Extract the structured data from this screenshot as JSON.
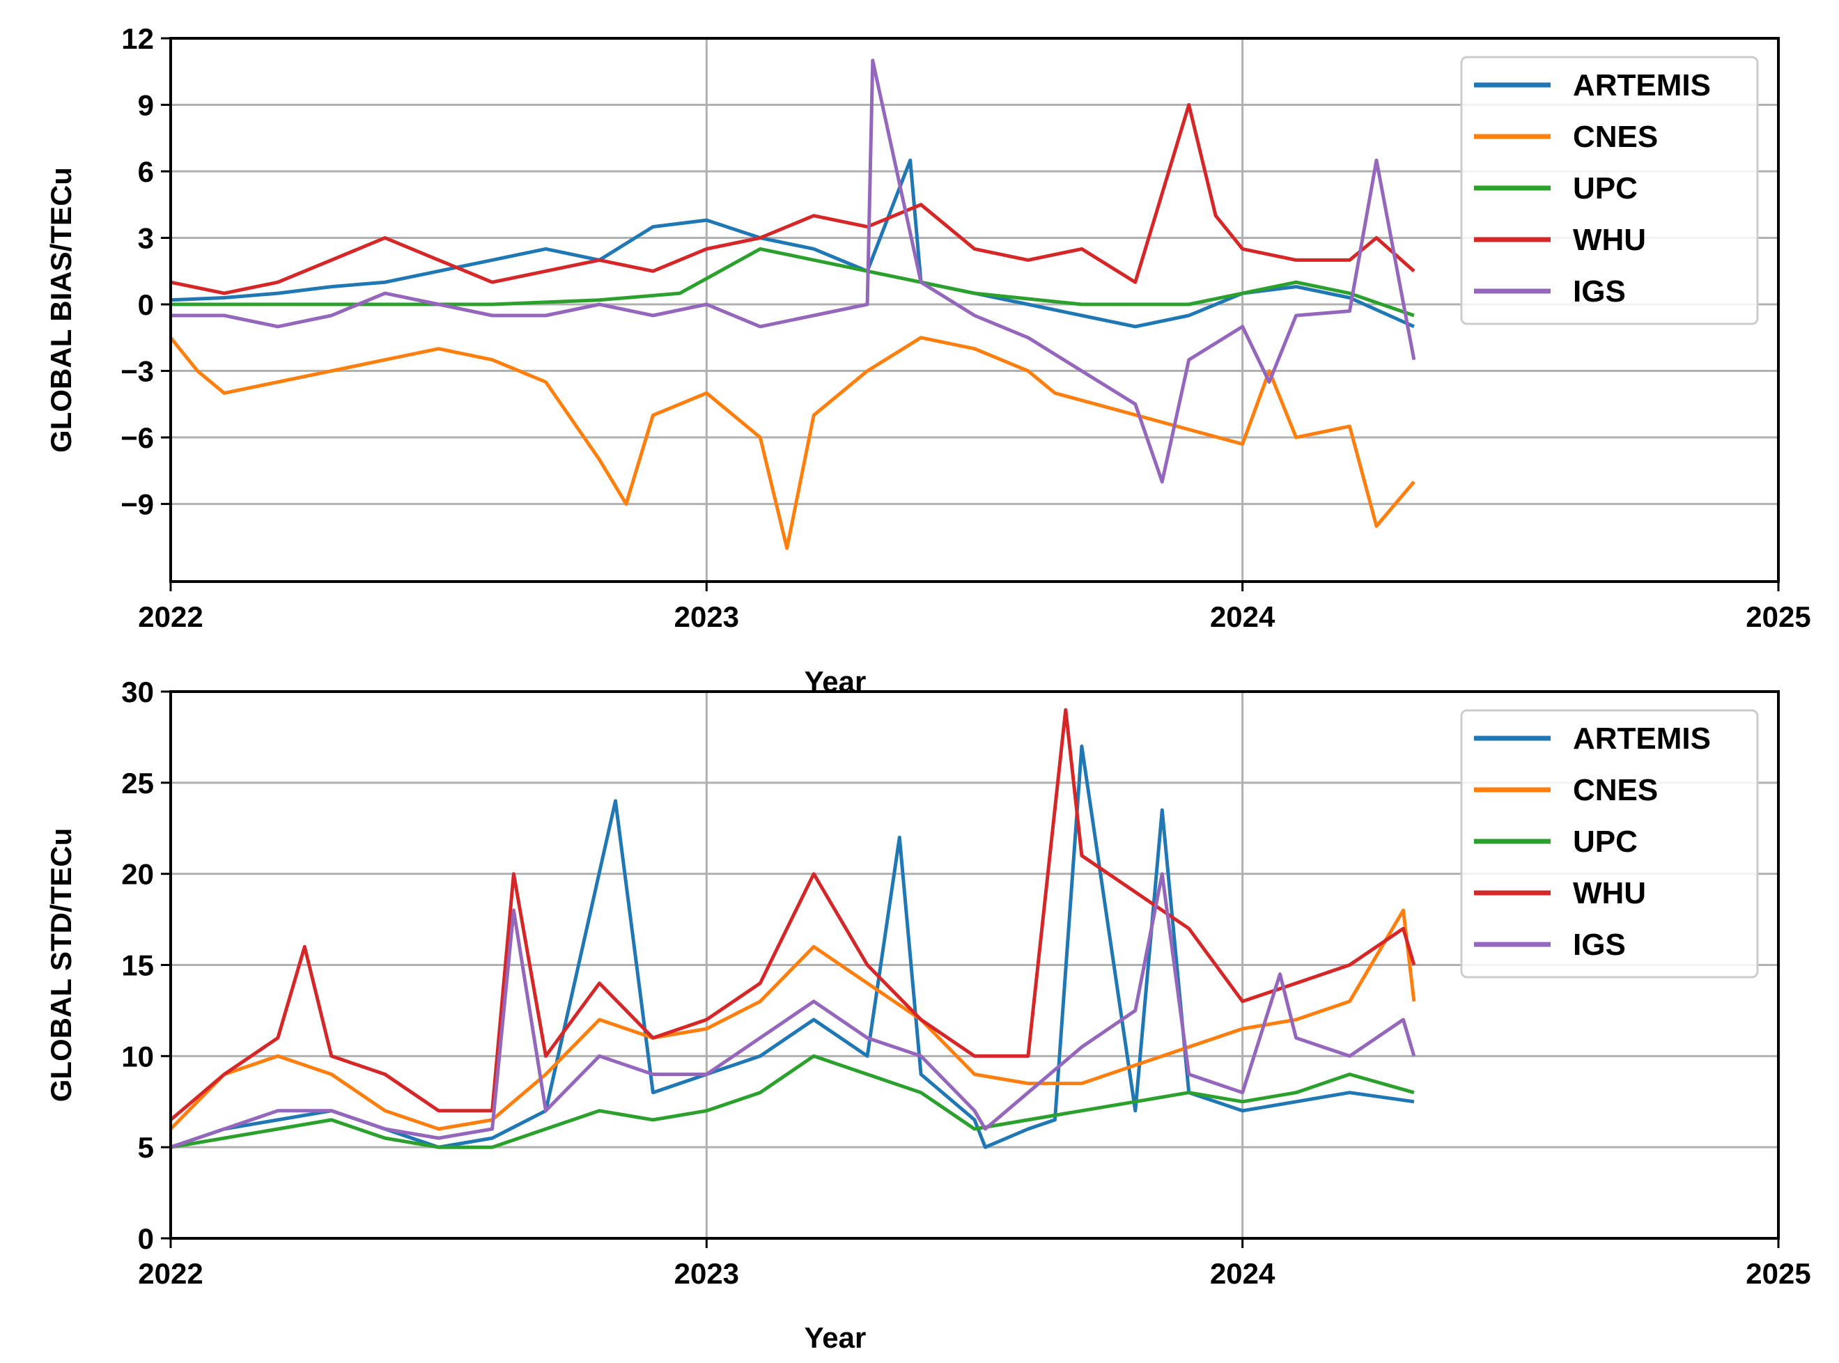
{
  "chart_data": [
    {
      "type": "line",
      "title": "",
      "xlabel": "Year",
      "ylabel": "GLOBAL BIAS/TECu",
      "xlim": [
        2022,
        2025
      ],
      "ylim": [
        -12.5,
        12
      ],
      "xticks": [
        "2022",
        "2023",
        "2024",
        "2025"
      ],
      "yticks": [
        "−9",
        "−6",
        "−3",
        "0",
        "3",
        "6",
        "9",
        "12"
      ],
      "legend_position": "upper-right",
      "grid": true,
      "series": [
        {
          "name": "ARTEMIS",
          "color": "#1f77b4",
          "x": [
            2022.0,
            2022.1,
            2022.2,
            2022.3,
            2022.4,
            2022.5,
            2022.6,
            2022.7,
            2022.8,
            2022.9,
            2023.0,
            2023.1,
            2023.2,
            2023.3,
            2023.38,
            2023.4,
            2023.5,
            2023.6,
            2023.7,
            2023.8,
            2023.9,
            2024.0,
            2024.1,
            2024.2,
            2024.32
          ],
          "y": [
            0.2,
            0.3,
            0.5,
            0.8,
            1.0,
            1.5,
            2.0,
            2.5,
            2.0,
            3.5,
            3.8,
            3.0,
            2.5,
            1.5,
            6.5,
            1.0,
            0.5,
            0.0,
            -0.5,
            -1.0,
            -0.5,
            0.5,
            0.8,
            0.3,
            -1.0
          ]
        },
        {
          "name": "CNES",
          "color": "#ff7f0e",
          "x": [
            2022.0,
            2022.05,
            2022.1,
            2022.2,
            2022.3,
            2022.4,
            2022.5,
            2022.6,
            2022.7,
            2022.8,
            2022.85,
            2022.9,
            2023.0,
            2023.1,
            2023.15,
            2023.2,
            2023.3,
            2023.4,
            2023.5,
            2023.6,
            2023.65,
            2024.0,
            2024.05,
            2024.1,
            2024.2,
            2024.25,
            2024.32
          ],
          "y": [
            -1.5,
            -3.0,
            -4.0,
            -3.5,
            -3.0,
            -2.5,
            -2.0,
            -2.5,
            -3.5,
            -7.0,
            -9.0,
            -5.0,
            -4.0,
            -6.0,
            -11.0,
            -5.0,
            -3.0,
            -1.5,
            -2.0,
            -3.0,
            -4.0,
            -6.3,
            -3.0,
            -6.0,
            -5.5,
            -10.0,
            -8.0
          ]
        },
        {
          "name": "UPC",
          "color": "#2ca02c",
          "x": [
            2022.0,
            2022.2,
            2022.4,
            2022.6,
            2022.8,
            2022.95,
            2023.1,
            2023.3,
            2023.5,
            2023.7,
            2023.9,
            2024.0,
            2024.1,
            2024.2,
            2024.32
          ],
          "y": [
            0.0,
            0.0,
            0.0,
            0.0,
            0.2,
            0.5,
            2.5,
            1.5,
            0.5,
            0.0,
            0.0,
            0.5,
            1.0,
            0.5,
            -0.5
          ]
        },
        {
          "name": "WHU",
          "color": "#d62728",
          "x": [
            2022.0,
            2022.1,
            2022.2,
            2022.3,
            2022.4,
            2022.5,
            2022.6,
            2022.7,
            2022.8,
            2022.9,
            2023.0,
            2023.1,
            2023.2,
            2023.3,
            2023.4,
            2023.5,
            2023.6,
            2023.7,
            2023.8,
            2023.85,
            2023.9,
            2023.95,
            2024.0,
            2024.1,
            2024.2,
            2024.25,
            2024.32
          ],
          "y": [
            1.0,
            0.5,
            1.0,
            2.0,
            3.0,
            2.0,
            1.0,
            1.5,
            2.0,
            1.5,
            2.5,
            3.0,
            4.0,
            3.5,
            4.5,
            2.5,
            2.0,
            2.5,
            1.0,
            5.0,
            9.0,
            4.0,
            2.5,
            2.0,
            2.0,
            3.0,
            1.5
          ]
        },
        {
          "name": "IGS",
          "color": "#9467bd",
          "x": [
            2022.0,
            2022.1,
            2022.2,
            2022.3,
            2022.4,
            2022.5,
            2022.6,
            2022.7,
            2022.8,
            2022.9,
            2023.0,
            2023.1,
            2023.2,
            2023.3,
            2023.31,
            2023.4,
            2023.5,
            2023.6,
            2023.7,
            2023.8,
            2023.85,
            2023.9,
            2024.0,
            2024.05,
            2024.1,
            2024.2,
            2024.25,
            2024.32
          ],
          "y": [
            -0.5,
            -0.5,
            -1.0,
            -0.5,
            0.5,
            0.0,
            -0.5,
            -0.5,
            0.0,
            -0.5,
            0.0,
            -1.0,
            -0.5,
            0.0,
            11.0,
            1.0,
            -0.5,
            -1.5,
            -3.0,
            -4.5,
            -8.0,
            -2.5,
            -1.0,
            -3.5,
            -0.5,
            -0.3,
            6.5,
            -2.5
          ]
        }
      ]
    },
    {
      "type": "line",
      "title": "",
      "xlabel": "Year",
      "ylabel": "GLOBAL STD/TECu",
      "xlim": [
        2022,
        2025
      ],
      "ylim": [
        0,
        30
      ],
      "xticks": [
        "2022",
        "2023",
        "2024",
        "2025"
      ],
      "yticks": [
        "0",
        "5",
        "10",
        "15",
        "20",
        "25",
        "30"
      ],
      "legend_position": "upper-right",
      "grid": true,
      "series": [
        {
          "name": "ARTEMIS",
          "color": "#1f77b4",
          "x": [
            2022.0,
            2022.1,
            2022.2,
            2022.3,
            2022.4,
            2022.5,
            2022.6,
            2022.7,
            2022.83,
            2022.9,
            2023.0,
            2023.1,
            2023.2,
            2023.3,
            2023.36,
            2023.4,
            2023.5,
            2023.52,
            2023.6,
            2023.65,
            2023.7,
            2023.8,
            2023.85,
            2023.9,
            2024.0,
            2024.1,
            2024.2,
            2024.32
          ],
          "y": [
            5.0,
            6.0,
            6.5,
            7.0,
            6.0,
            5.0,
            5.5,
            7.0,
            24.0,
            8.0,
            9.0,
            10.0,
            12.0,
            10.0,
            22.0,
            9.0,
            6.5,
            5.0,
            6.0,
            6.5,
            27.0,
            7.0,
            23.5,
            8.0,
            7.0,
            7.5,
            8.0,
            7.5
          ]
        },
        {
          "name": "CNES",
          "color": "#ff7f0e",
          "x": [
            2022.0,
            2022.1,
            2022.2,
            2022.3,
            2022.4,
            2022.5,
            2022.6,
            2022.7,
            2022.8,
            2022.9,
            2023.0,
            2023.1,
            2023.2,
            2023.3,
            2023.4,
            2023.5,
            2023.6,
            2023.7,
            2023.8,
            2023.9,
            2024.0,
            2024.1,
            2024.2,
            2024.3,
            2024.32
          ],
          "y": [
            6.0,
            9.0,
            10.0,
            9.0,
            7.0,
            6.0,
            6.5,
            9.0,
            12.0,
            11.0,
            11.5,
            13.0,
            16.0,
            14.0,
            12.0,
            9.0,
            8.5,
            8.5,
            9.5,
            10.5,
            11.5,
            12.0,
            13.0,
            18.0,
            13.0
          ]
        },
        {
          "name": "UPC",
          "color": "#2ca02c",
          "x": [
            2022.0,
            2022.1,
            2022.2,
            2022.3,
            2022.4,
            2022.5,
            2022.6,
            2022.7,
            2022.8,
            2022.9,
            2023.0,
            2023.1,
            2023.2,
            2023.3,
            2023.4,
            2023.5,
            2023.6,
            2023.7,
            2023.8,
            2023.9,
            2024.0,
            2024.1,
            2024.2,
            2024.32
          ],
          "y": [
            5.0,
            5.5,
            6.0,
            6.5,
            5.5,
            5.0,
            5.0,
            6.0,
            7.0,
            6.5,
            7.0,
            8.0,
            10.0,
            9.0,
            8.0,
            6.0,
            6.5,
            7.0,
            7.5,
            8.0,
            7.5,
            8.0,
            9.0,
            8.0
          ]
        },
        {
          "name": "WHU",
          "color": "#d62728",
          "x": [
            2022.0,
            2022.1,
            2022.2,
            2022.25,
            2022.3,
            2022.4,
            2022.5,
            2022.6,
            2022.64,
            2022.7,
            2022.8,
            2022.9,
            2023.0,
            2023.1,
            2023.2,
            2023.3,
            2023.4,
            2023.5,
            2023.6,
            2023.67,
            2023.7,
            2023.8,
            2023.9,
            2024.0,
            2024.1,
            2024.2,
            2024.3,
            2024.32
          ],
          "y": [
            6.5,
            9.0,
            11.0,
            16.0,
            10.0,
            9.0,
            7.0,
            7.0,
            20.0,
            10.0,
            14.0,
            11.0,
            12.0,
            14.0,
            20.0,
            15.0,
            12.0,
            10.0,
            10.0,
            29.0,
            21.0,
            19.0,
            17.0,
            13.0,
            14.0,
            15.0,
            17.0,
            15.0
          ]
        },
        {
          "name": "IGS",
          "color": "#9467bd",
          "x": [
            2022.0,
            2022.1,
            2022.2,
            2022.3,
            2022.4,
            2022.5,
            2022.6,
            2022.64,
            2022.7,
            2022.8,
            2022.9,
            2023.0,
            2023.1,
            2023.2,
            2023.3,
            2023.4,
            2023.5,
            2023.52,
            2023.6,
            2023.7,
            2023.8,
            2023.85,
            2023.9,
            2024.0,
            2024.07,
            2024.1,
            2024.2,
            2024.3,
            2024.32
          ],
          "y": [
            5.0,
            6.0,
            7.0,
            7.0,
            6.0,
            5.5,
            6.0,
            18.0,
            7.0,
            10.0,
            9.0,
            9.0,
            11.0,
            13.0,
            11.0,
            10.0,
            7.0,
            6.0,
            8.0,
            10.5,
            12.5,
            20.0,
            9.0,
            8.0,
            14.5,
            11.0,
            10.0,
            12.0,
            10.0
          ]
        }
      ]
    }
  ]
}
